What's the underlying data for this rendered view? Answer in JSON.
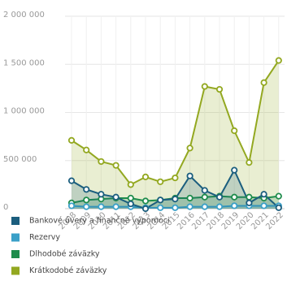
{
  "chart_data": {
    "type": "area-line",
    "categories": [
      "2008",
      "2009",
      "2010",
      "2011",
      "2012",
      "2013",
      "2014",
      "2015",
      "2016",
      "2017",
      "2018",
      "2019",
      "2020",
      "2021",
      "2022"
    ],
    "series": [
      {
        "name": "Bankové úvery a finančné výpomoci",
        "color": "#1b5e7e",
        "values": [
          290000,
          200000,
          150000,
          120000,
          50000,
          0,
          90000,
          100000,
          340000,
          190000,
          120000,
          400000,
          60000,
          150000,
          10000
        ]
      },
      {
        "name": "Rezervy",
        "color": "#3aa0c8",
        "values": [
          30000,
          20000,
          20000,
          20000,
          20000,
          10000,
          10000,
          10000,
          20000,
          20000,
          20000,
          30000,
          30000,
          30000,
          30000
        ]
      },
      {
        "name": "Dlhodobé záväzky",
        "color": "#1e8c4c",
        "values": [
          60000,
          90000,
          100000,
          110000,
          110000,
          80000,
          90000,
          110000,
          110000,
          120000,
          130000,
          120000,
          120000,
          110000,
          130000
        ]
      },
      {
        "name": "Krátkodobé záväzky",
        "color": "#93a820",
        "values": [
          710000,
          610000,
          490000,
          450000,
          250000,
          330000,
          280000,
          320000,
          630000,
          1270000,
          1240000,
          810000,
          480000,
          1310000,
          1540000
        ]
      }
    ],
    "ylim": [
      0,
      2000000
    ],
    "yticks": [
      0,
      {
        "value": 500000,
        "label": "500 000"
      },
      {
        "value": 1000000,
        "label": "1 000 000"
      },
      {
        "value": 1500000,
        "label": "1 500 000"
      },
      {
        "value": 2000000,
        "label": "2 000 000"
      }
    ],
    "grid": true
  }
}
